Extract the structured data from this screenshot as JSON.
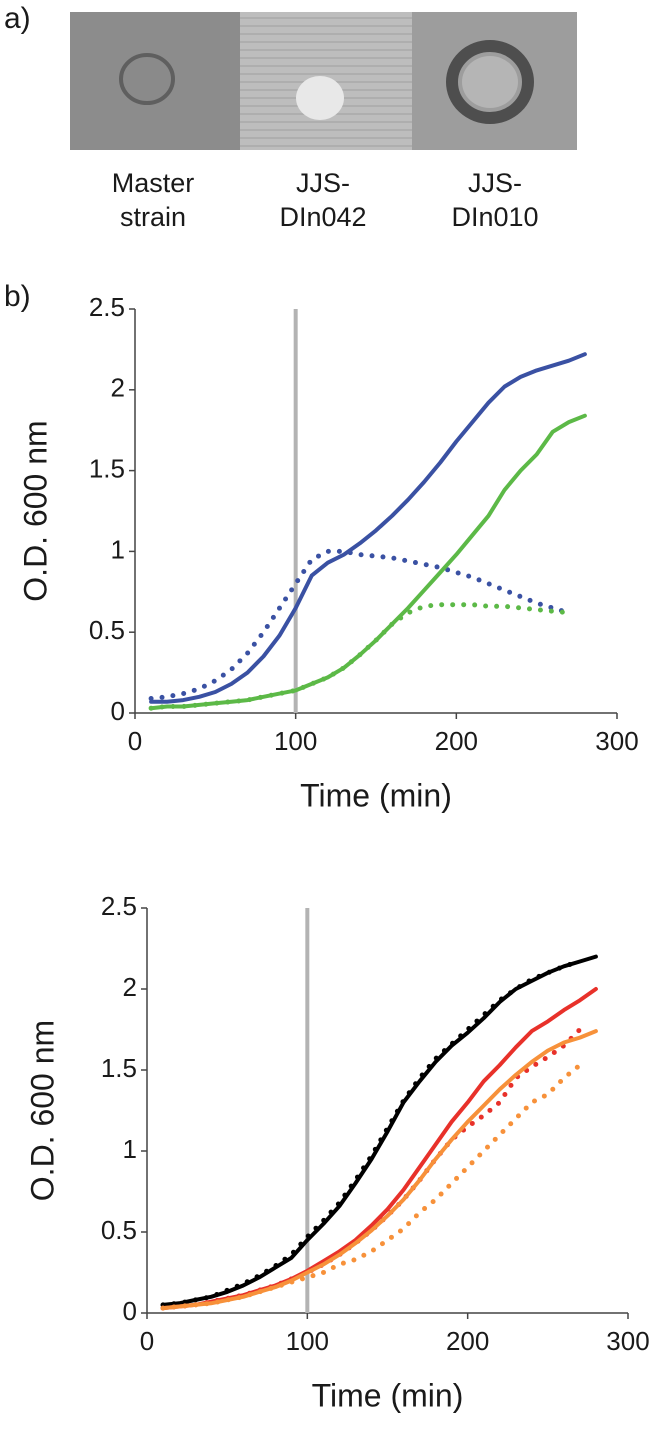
{
  "panels": {
    "a": "a)",
    "b": "b)"
  },
  "strains": [
    [
      "Master",
      "strain"
    ],
    [
      "JJS-",
      "DIn042"
    ],
    [
      "JJS-",
      "DIn010"
    ]
  ],
  "chart_data": [
    {
      "type": "line",
      "xlabel": "Time (min)",
      "ylabel": "O.D. 600 nm",
      "xlim": [
        0,
        300
      ],
      "xticks": [
        0,
        100,
        200,
        300
      ],
      "ylim": [
        0,
        2.5
      ],
      "yticks": [
        0,
        0.5,
        1,
        1.5,
        2,
        2.5
      ],
      "vline": 100,
      "vline_color": "#b3b3b3",
      "x": [
        10,
        20,
        30,
        40,
        50,
        60,
        70,
        80,
        90,
        100,
        110,
        120,
        130,
        140,
        150,
        160,
        170,
        180,
        190,
        200,
        210,
        220,
        230,
        240,
        250,
        260,
        270,
        280
      ],
      "series": [
        {
          "color": "#3a51a3",
          "dotted": false,
          "values": [
            0.07,
            0.07,
            0.08,
            0.1,
            0.13,
            0.18,
            0.25,
            0.35,
            0.48,
            0.65,
            0.85,
            0.93,
            0.98,
            1.05,
            1.13,
            1.22,
            1.32,
            1.43,
            1.55,
            1.68,
            1.8,
            1.92,
            2.02,
            2.08,
            2.12,
            2.15,
            2.18,
            2.22
          ]
        },
        {
          "color": "#3a51a3",
          "dotted": true,
          "values": [
            0.09,
            0.1,
            0.12,
            0.15,
            0.2,
            0.27,
            0.37,
            0.5,
            0.65,
            0.8,
            0.95,
            1.0,
            1.0,
            0.98,
            0.97,
            0.96,
            0.94,
            0.92,
            0.9,
            0.87,
            0.84,
            0.8,
            0.76,
            0.72,
            0.68,
            0.65,
            0.62,
            null
          ]
        },
        {
          "color": "#5cb947",
          "dotted": false,
          "values": [
            0.03,
            0.04,
            0.04,
            0.05,
            0.06,
            0.07,
            0.08,
            0.1,
            0.12,
            0.14,
            0.18,
            0.22,
            0.28,
            0.36,
            0.45,
            0.55,
            0.65,
            0.76,
            0.87,
            0.98,
            1.1,
            1.22,
            1.38,
            1.5,
            1.6,
            1.74,
            1.8,
            1.84
          ]
        },
        {
          "color": "#5cb947",
          "dotted": true,
          "values": [
            0.03,
            0.04,
            0.04,
            0.05,
            0.06,
            0.07,
            0.08,
            0.1,
            0.12,
            0.14,
            0.18,
            0.22,
            0.28,
            0.36,
            0.45,
            0.55,
            0.62,
            0.66,
            0.67,
            0.67,
            0.67,
            0.66,
            0.66,
            0.65,
            0.64,
            0.63,
            0.62,
            null
          ]
        }
      ]
    },
    {
      "type": "line",
      "xlabel": "Time (min)",
      "ylabel": "O.D. 600 nm",
      "xlim": [
        0,
        300
      ],
      "xticks": [
        0,
        100,
        200,
        300
      ],
      "ylim": [
        0,
        2.5
      ],
      "yticks": [
        0,
        0.5,
        1,
        1.5,
        2,
        2.5
      ],
      "vline": 100,
      "vline_color": "#b3b3b3",
      "x": [
        10,
        20,
        30,
        40,
        50,
        60,
        70,
        80,
        90,
        100,
        110,
        120,
        130,
        140,
        150,
        160,
        170,
        180,
        190,
        200,
        210,
        220,
        230,
        240,
        250,
        260,
        270,
        280
      ],
      "series": [
        {
          "color": "#000000",
          "dotted": false,
          "values": [
            0.05,
            0.06,
            0.08,
            0.1,
            0.13,
            0.17,
            0.22,
            0.28,
            0.34,
            0.45,
            0.55,
            0.66,
            0.8,
            0.95,
            1.12,
            1.3,
            1.43,
            1.55,
            1.65,
            1.73,
            1.82,
            1.92,
            2.0,
            2.05,
            2.1,
            2.14,
            2.17,
            2.2
          ]
        },
        {
          "color": "#000000",
          "dotted": true,
          "values": [
            0.05,
            0.06,
            0.08,
            0.1,
            0.14,
            0.18,
            0.23,
            0.29,
            0.36,
            0.47,
            0.57,
            0.68,
            0.82,
            0.97,
            1.14,
            1.31,
            1.45,
            1.57,
            1.66,
            1.75,
            1.84,
            1.93,
            2.0,
            2.06,
            2.1,
            2.14,
            2.17,
            null
          ]
        },
        {
          "color": "#e8312a",
          "dotted": false,
          "values": [
            0.03,
            0.04,
            0.05,
            0.07,
            0.09,
            0.11,
            0.14,
            0.17,
            0.21,
            0.26,
            0.32,
            0.38,
            0.45,
            0.54,
            0.64,
            0.76,
            0.9,
            1.04,
            1.18,
            1.3,
            1.43,
            1.53,
            1.64,
            1.74,
            1.8,
            1.87,
            1.93,
            2.0
          ]
        },
        {
          "color": "#e8312a",
          "dotted": true,
          "values": [
            0.03,
            0.04,
            0.05,
            0.07,
            0.09,
            0.11,
            0.14,
            0.17,
            0.21,
            0.25,
            0.3,
            0.36,
            0.43,
            0.51,
            0.6,
            0.7,
            0.82,
            0.95,
            1.07,
            1.15,
            1.22,
            1.3,
            1.45,
            1.52,
            1.58,
            1.65,
            1.75,
            null
          ]
        },
        {
          "color": "#f7913a",
          "dotted": false,
          "values": [
            0.03,
            0.04,
            0.05,
            0.06,
            0.08,
            0.1,
            0.13,
            0.16,
            0.2,
            0.25,
            0.3,
            0.36,
            0.43,
            0.51,
            0.6,
            0.7,
            0.82,
            0.95,
            1.07,
            1.18,
            1.28,
            1.38,
            1.47,
            1.55,
            1.62,
            1.67,
            1.7,
            1.74
          ]
        },
        {
          "color": "#f7913a",
          "dotted": true,
          "values": [
            0.03,
            0.04,
            0.05,
            0.06,
            0.08,
            0.1,
            0.13,
            0.16,
            0.19,
            0.22,
            0.25,
            0.3,
            0.33,
            0.38,
            0.45,
            0.52,
            0.62,
            0.7,
            0.8,
            0.9,
            1.0,
            1.1,
            1.2,
            1.3,
            1.35,
            1.45,
            1.53,
            null
          ]
        }
      ]
    }
  ]
}
